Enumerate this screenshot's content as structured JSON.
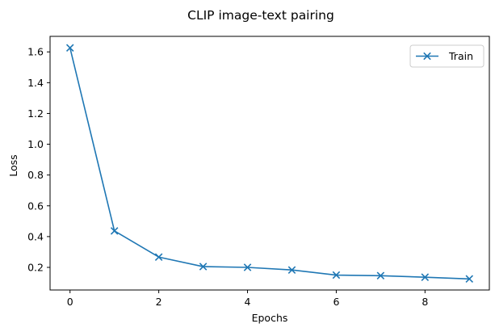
{
  "chart_data": {
    "type": "line",
    "title": "CLIP image-text pairing",
    "xlabel": "Epochs",
    "ylabel": "Loss",
    "xlim": [
      -0.45,
      9.45
    ],
    "ylim": [
      0.053,
      1.701
    ],
    "xticks": [
      0,
      2,
      4,
      6,
      8
    ],
    "xtick_labels": [
      "0",
      "2",
      "4",
      "6",
      "8"
    ],
    "yticks": [
      0.2,
      0.4,
      0.6,
      0.8,
      1.0,
      1.2,
      1.4,
      1.6
    ],
    "ytick_labels": [
      "0.2",
      "0.4",
      "0.6",
      "0.8",
      "1.0",
      "1.2",
      "1.4",
      "1.6"
    ],
    "grid": false,
    "legend_position": "upper right",
    "series": [
      {
        "name": "Train",
        "color": "#1f77b4",
        "marker": "x",
        "x": [
          0,
          1,
          2,
          3,
          4,
          5,
          6,
          7,
          8,
          9
        ],
        "y": [
          1.626,
          0.437,
          0.267,
          0.205,
          0.2,
          0.183,
          0.15,
          0.146,
          0.136,
          0.125
        ]
      }
    ]
  }
}
